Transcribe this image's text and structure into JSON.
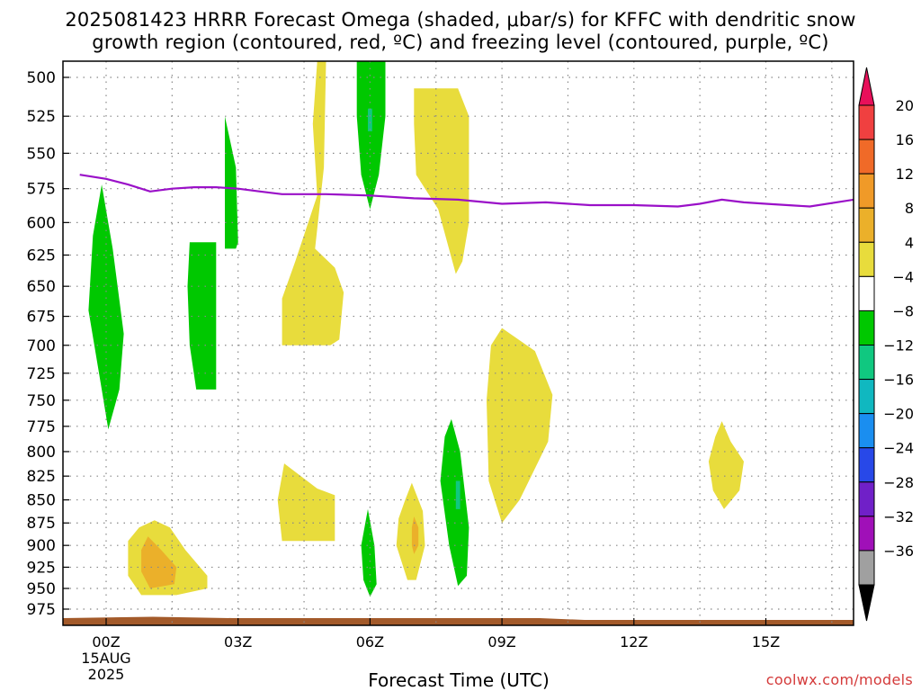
{
  "title_line1": "2025081423 HRRR Forecast Omega (shaded, μbar/s) for KFFC with dendritic snow",
  "title_line2": "growth region (contoured, red, ºC) and freezing level (contoured, purple, ºC)",
  "xlabel": "Forecast Time (UTC)",
  "credit": "coolwx.com/models",
  "chart_data": {
    "type": "heatmap",
    "y_ticks": [
      500,
      525,
      550,
      575,
      600,
      625,
      650,
      675,
      700,
      725,
      750,
      775,
      800,
      825,
      850,
      875,
      900,
      925,
      950,
      975
    ],
    "x_ticks": [
      {
        "hour": 0,
        "label": "00Z",
        "date": "15AUG",
        "year": "2025"
      },
      {
        "hour": 3,
        "label": "03Z"
      },
      {
        "hour": 6,
        "label": "06Z"
      },
      {
        "hour": 9,
        "label": "09Z"
      },
      {
        "hour": 12,
        "label": "12Z"
      },
      {
        "hour": 15,
        "label": "15Z"
      }
    ],
    "x_range": [
      "2025-08-14 23Z",
      "2025-08-15 17Z"
    ],
    "y_range": [
      490,
      990
    ],
    "y_axis": "pressure (hPa), inverted",
    "grid": true,
    "colorbar": {
      "labels": [
        "20",
        "16",
        "12",
        "8",
        "4",
        "−4",
        "−8",
        "−12",
        "−16",
        "−20",
        "−24",
        "−28",
        "−32",
        "−36"
      ],
      "colors": [
        "#e8105a",
        "#f04040",
        "#f06a28",
        "#f09a28",
        "#ebb02a",
        "#e8dc3c",
        "#ffffff",
        "#00c800",
        "#10c880",
        "#10b8c0",
        "#1a8ef0",
        "#2848e8",
        "#7020c8",
        "#a010b8",
        "#a0a0a0",
        "#000000"
      ]
    },
    "freezing_level": {
      "color": "#9a10c8",
      "points": [
        [
          -0.6,
          565
        ],
        [
          0,
          568
        ],
        [
          0.5,
          572
        ],
        [
          1,
          577
        ],
        [
          1.5,
          575
        ],
        [
          2,
          574
        ],
        [
          2.5,
          574
        ],
        [
          3,
          575
        ],
        [
          3.5,
          577
        ],
        [
          4,
          579
        ],
        [
          5,
          579
        ],
        [
          6,
          580
        ],
        [
          7,
          582
        ],
        [
          8,
          583
        ],
        [
          9,
          586
        ],
        [
          10,
          585
        ],
        [
          11,
          587
        ],
        [
          12,
          587
        ],
        [
          13,
          588
        ],
        [
          13.5,
          586
        ],
        [
          14,
          583
        ],
        [
          14.5,
          585
        ],
        [
          15,
          586
        ],
        [
          16,
          588
        ],
        [
          17,
          583
        ]
      ]
    },
    "terrain": {
      "color": "#a35a2a",
      "pressure_top": 985
    },
    "omega_regions": [
      {
        "level": "-4",
        "color": "#00c800",
        "points": [
          [
            -0.1,
            572
          ],
          [
            0.15,
            620
          ],
          [
            0.4,
            690
          ],
          [
            0.3,
            740
          ],
          [
            0.05,
            778
          ],
          [
            -0.1,
            740
          ],
          [
            -0.4,
            670
          ],
          [
            -0.3,
            610
          ]
        ]
      },
      {
        "level": "-4",
        "color": "#00c800",
        "points": [
          [
            1.9,
            615
          ],
          [
            2.5,
            615
          ],
          [
            2.5,
            740
          ],
          [
            2.05,
            740
          ],
          [
            1.9,
            700
          ],
          [
            1.85,
            650
          ]
        ]
      },
      {
        "level": "-4",
        "color": "#00c800",
        "points": [
          [
            2.7,
            525
          ],
          [
            2.95,
            560
          ],
          [
            3.0,
            615
          ],
          [
            2.95,
            620
          ],
          [
            2.7,
            620
          ],
          [
            2.7,
            580
          ]
        ]
      },
      {
        "level": "-4",
        "color": "#00c800",
        "points": [
          [
            5.7,
            490
          ],
          [
            6.35,
            490
          ],
          [
            6.35,
            525
          ],
          [
            6.2,
            565
          ],
          [
            6.0,
            590
          ],
          [
            5.8,
            565
          ],
          [
            5.7,
            525
          ]
        ]
      },
      {
        "level": "-8",
        "color": "#10c880",
        "points": [
          [
            5.95,
            520
          ],
          [
            6.05,
            520
          ],
          [
            6.05,
            535
          ],
          [
            5.95,
            535
          ]
        ]
      },
      {
        "level": "-4",
        "color": "#00c800",
        "points": [
          [
            5.95,
            860
          ],
          [
            6.1,
            900
          ],
          [
            6.15,
            945
          ],
          [
            6.0,
            960
          ],
          [
            5.85,
            940
          ],
          [
            5.8,
            900
          ]
        ]
      },
      {
        "level": "-4",
        "color": "#00c800",
        "points": [
          [
            7.85,
            768
          ],
          [
            8.05,
            800
          ],
          [
            8.25,
            880
          ],
          [
            8.2,
            935
          ],
          [
            8.0,
            947
          ],
          [
            7.8,
            900
          ],
          [
            7.6,
            830
          ],
          [
            7.7,
            785
          ]
        ]
      },
      {
        "level": "-8",
        "color": "#10c880",
        "points": [
          [
            7.95,
            830
          ],
          [
            8.05,
            830
          ],
          [
            8.05,
            860
          ],
          [
            7.95,
            860
          ]
        ]
      },
      {
        "level": "4",
        "color": "#e8dc3c",
        "points": [
          [
            5.0,
            490
          ],
          [
            4.95,
            560
          ],
          [
            4.75,
            620
          ],
          [
            5.2,
            635
          ],
          [
            5.4,
            655
          ],
          [
            5.3,
            695
          ],
          [
            5.1,
            700
          ],
          [
            4.0,
            700
          ],
          [
            4.0,
            660
          ],
          [
            4.3,
            630
          ],
          [
            4.8,
            580
          ],
          [
            4.7,
            530
          ],
          [
            4.8,
            490
          ]
        ]
      },
      {
        "level": "4",
        "color": "#e8dc3c",
        "points": [
          [
            7.0,
            507
          ],
          [
            8.0,
            507
          ],
          [
            8.25,
            525
          ],
          [
            8.25,
            600
          ],
          [
            8.1,
            630
          ],
          [
            7.95,
            640
          ],
          [
            7.55,
            590
          ],
          [
            7.05,
            565
          ],
          [
            7.0,
            530
          ]
        ]
      },
      {
        "level": "4",
        "color": "#e8dc3c",
        "points": [
          [
            9.0,
            685
          ],
          [
            9.75,
            705
          ],
          [
            10.15,
            745
          ],
          [
            10.05,
            790
          ],
          [
            9.4,
            850
          ],
          [
            9.0,
            875
          ],
          [
            8.7,
            830
          ],
          [
            8.65,
            750
          ],
          [
            8.75,
            700
          ]
        ]
      },
      {
        "level": "4",
        "color": "#e8dc3c",
        "points": [
          [
            4.05,
            812
          ],
          [
            4.8,
            838
          ],
          [
            5.2,
            845
          ],
          [
            5.2,
            895
          ],
          [
            4.0,
            895
          ],
          [
            3.9,
            850
          ]
        ]
      },
      {
        "level": "4",
        "color": "#e8dc3c",
        "points": [
          [
            6.95,
            832
          ],
          [
            7.2,
            862
          ],
          [
            7.25,
            900
          ],
          [
            7.05,
            940
          ],
          [
            6.85,
            940
          ],
          [
            6.6,
            900
          ],
          [
            6.65,
            870
          ],
          [
            6.8,
            850
          ]
        ]
      },
      {
        "level": "8",
        "color": "#ebb02a",
        "points": [
          [
            7.0,
            868
          ],
          [
            7.1,
            880
          ],
          [
            7.1,
            900
          ],
          [
            7.0,
            910
          ],
          [
            6.95,
            900
          ],
          [
            6.95,
            880
          ]
        ]
      },
      {
        "level": "4",
        "color": "#e8dc3c",
        "points": [
          [
            1.1,
            872
          ],
          [
            1.45,
            880
          ],
          [
            1.8,
            905
          ],
          [
            2.3,
            935
          ],
          [
            2.3,
            950
          ],
          [
            1.6,
            958
          ],
          [
            0.8,
            958
          ],
          [
            0.5,
            935
          ],
          [
            0.5,
            895
          ],
          [
            0.75,
            880
          ]
        ]
      },
      {
        "level": "8",
        "color": "#ebb02a",
        "points": [
          [
            0.95,
            890
          ],
          [
            1.25,
            905
          ],
          [
            1.6,
            925
          ],
          [
            1.55,
            945
          ],
          [
            1.0,
            950
          ],
          [
            0.8,
            930
          ],
          [
            0.8,
            905
          ]
        ]
      },
      {
        "level": "4",
        "color": "#e8dc3c",
        "points": [
          [
            14.0,
            770
          ],
          [
            14.2,
            790
          ],
          [
            14.5,
            810
          ],
          [
            14.4,
            840
          ],
          [
            14.05,
            860
          ],
          [
            13.8,
            840
          ],
          [
            13.7,
            810
          ],
          [
            13.85,
            785
          ]
        ]
      }
    ]
  }
}
